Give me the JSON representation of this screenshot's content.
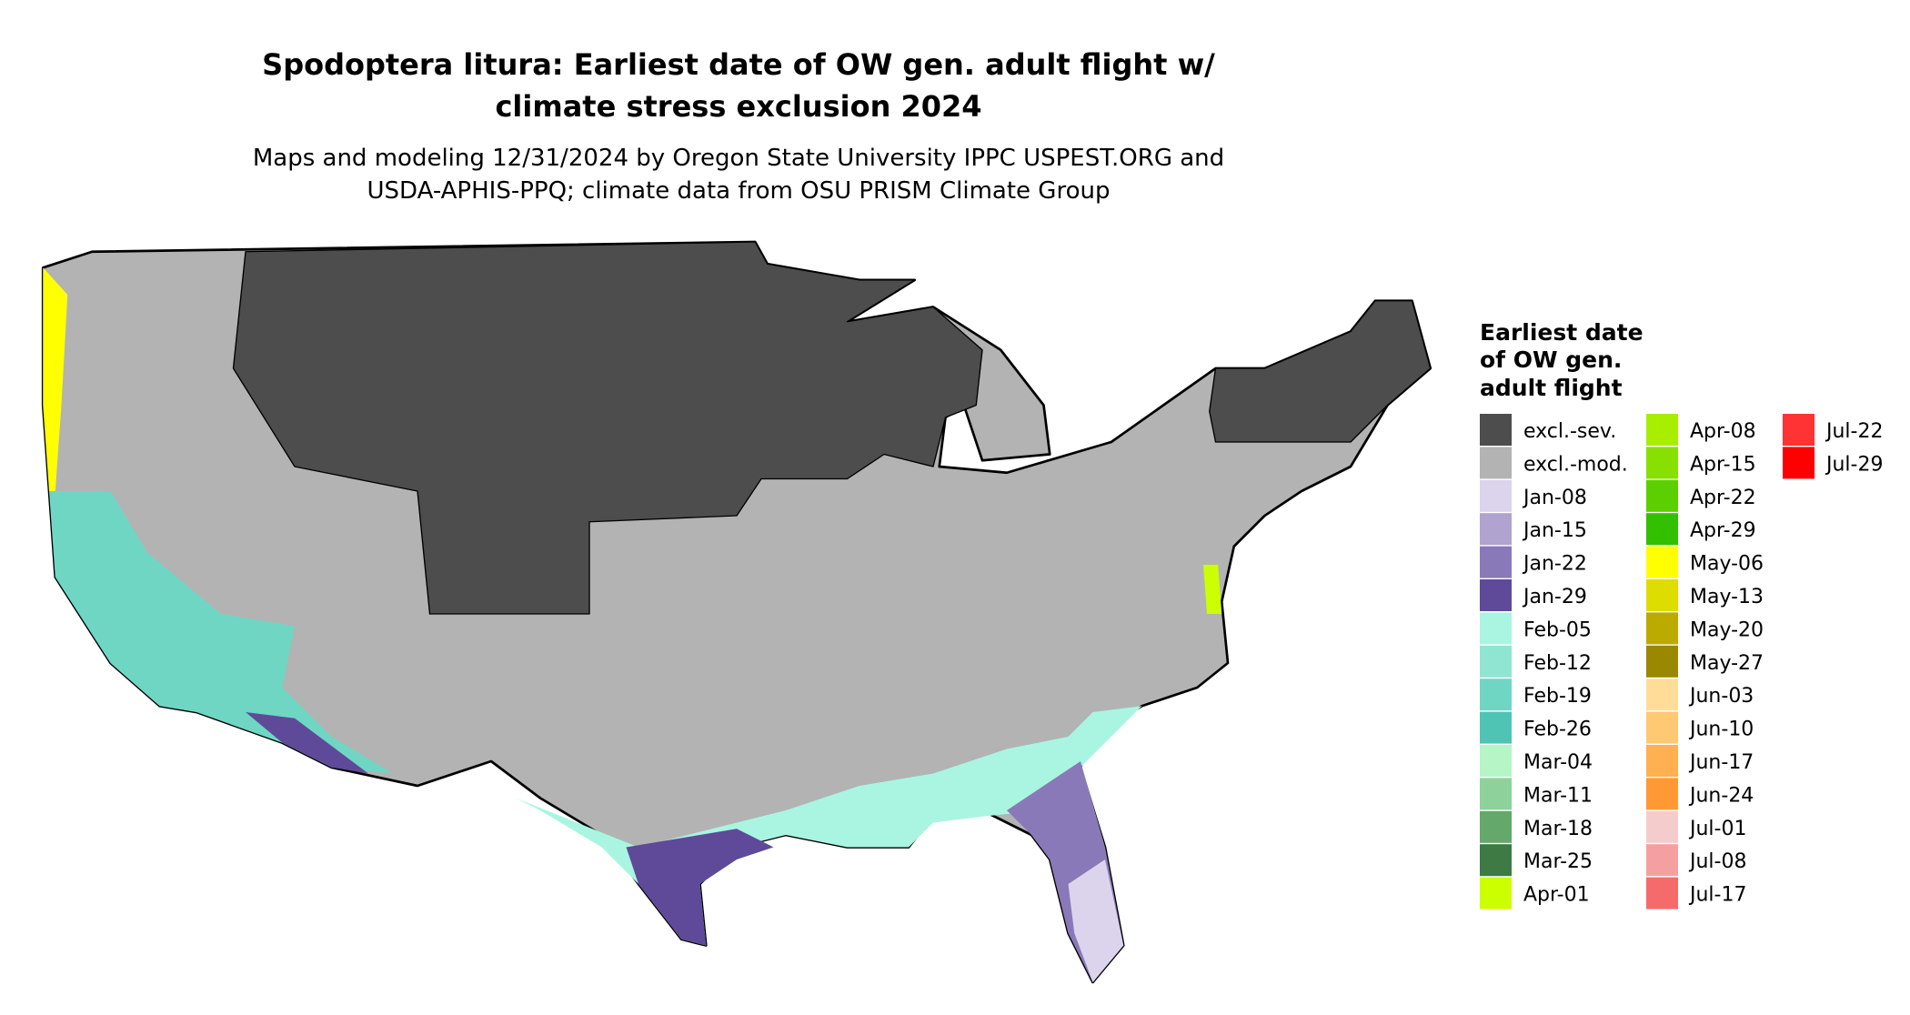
{
  "title": [
    "Spodoptera litura: Earliest date of OW gen. adult flight w/",
    "climate stress exclusion 2024"
  ],
  "subtitle": [
    "Maps and modeling 12/31/2024 by Oregon State University IPPC USPEST.ORG and",
    "USDA-APHIS-PPQ; climate data from OSU PRISM Climate Group"
  ],
  "legend": {
    "title": [
      "Earliest date",
      "of OW gen.",
      "adult flight"
    ],
    "columns": [
      [
        {
          "label": "excl.-sev.",
          "color": "#4d4d4d"
        },
        {
          "label": "excl.-mod.",
          "color": "#b3b3b3"
        },
        {
          "label": "Jan-08",
          "color": "#dcd4ec"
        },
        {
          "label": "Jan-15",
          "color": "#b0a3cf"
        },
        {
          "label": "Jan-22",
          "color": "#8a79b8"
        },
        {
          "label": "Jan-29",
          "color": "#5e4a98"
        },
        {
          "label": "Feb-05",
          "color": "#a9f5e1"
        },
        {
          "label": "Feb-12",
          "color": "#8fe5d2"
        },
        {
          "label": "Feb-19",
          "color": "#6fd6c4"
        },
        {
          "label": "Feb-26",
          "color": "#4fc4b5"
        },
        {
          "label": "Mar-04",
          "color": "#b6f5c6"
        },
        {
          "label": "Mar-11",
          "color": "#8fd19b"
        },
        {
          "label": "Mar-18",
          "color": "#64a86c"
        },
        {
          "label": "Mar-25",
          "color": "#3e7b44"
        },
        {
          "label": "Apr-01",
          "color": "#ccff00"
        }
      ],
      [
        {
          "label": "Apr-08",
          "color": "#a8ee00"
        },
        {
          "label": "Apr-15",
          "color": "#88e000"
        },
        {
          "label": "Apr-22",
          "color": "#5ccf00"
        },
        {
          "label": "Apr-29",
          "color": "#33c000"
        },
        {
          "label": "May-06",
          "color": "#ffff00"
        },
        {
          "label": "May-13",
          "color": "#dddd00"
        },
        {
          "label": "May-20",
          "color": "#bbaa00"
        },
        {
          "label": "May-27",
          "color": "#998800"
        },
        {
          "label": "Jun-03",
          "color": "#ffdd99"
        },
        {
          "label": "Jun-10",
          "color": "#ffc873"
        },
        {
          "label": "Jun-17",
          "color": "#ffb050"
        },
        {
          "label": "Jun-24",
          "color": "#ff9933"
        },
        {
          "label": "Jul-01",
          "color": "#f5cccc"
        },
        {
          "label": "Jul-08",
          "color": "#f5a0a0"
        },
        {
          "label": "Jul-17",
          "color": "#f56b6b"
        }
      ],
      [
        {
          "label": "Jul-22",
          "color": "#ff3333"
        },
        {
          "label": "Jul-29",
          "color": "#ff0000"
        }
      ]
    ]
  }
}
